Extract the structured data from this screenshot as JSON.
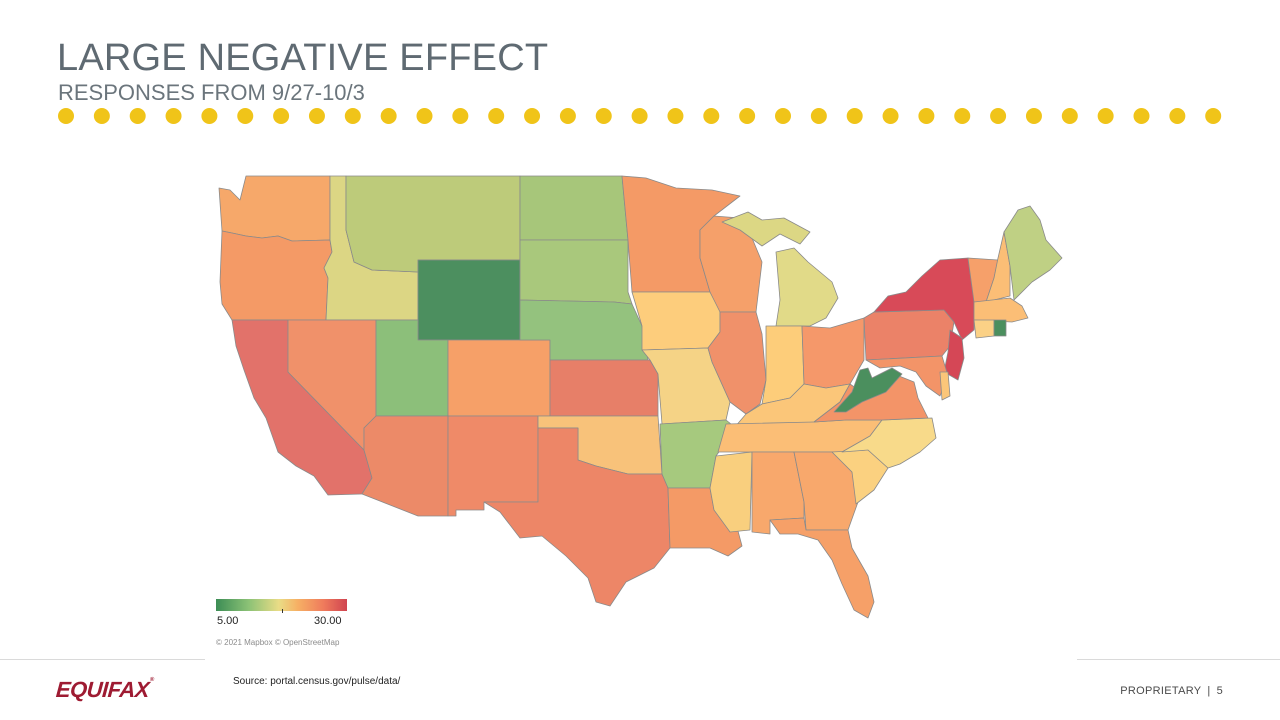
{
  "title": "LARGE NEGATIVE EFFECT",
  "subtitle": "RESPONSES FROM 9/27-10/3",
  "accent_color": "#f0c419",
  "map": {
    "legend": {
      "min_label": "5.00",
      "max_label": "30.00",
      "min_color": "#3c8d55",
      "max_color": "#d04450"
    },
    "credit": "© 2021 Mapbox © OpenStreetMap",
    "states": [
      {
        "id": "WA",
        "fill": "#f6a86a"
      },
      {
        "id": "OR",
        "fill": "#f49a66"
      },
      {
        "id": "CA",
        "fill": "#e2726a"
      },
      {
        "id": "ID",
        "fill": "#dcd684"
      },
      {
        "id": "NV",
        "fill": "#f0916a"
      },
      {
        "id": "MT",
        "fill": "#bdcb7a"
      },
      {
        "id": "WY",
        "fill": "#4c8f5f"
      },
      {
        "id": "UT",
        "fill": "#8cbf7a"
      },
      {
        "id": "AZ",
        "fill": "#ec8a68"
      },
      {
        "id": "CO",
        "fill": "#f6a068"
      },
      {
        "id": "NM",
        "fill": "#ef8a68"
      },
      {
        "id": "ND",
        "fill": "#a7c67a"
      },
      {
        "id": "SD",
        "fill": "#a9c87c"
      },
      {
        "id": "NE",
        "fill": "#94c27e"
      },
      {
        "id": "KS",
        "fill": "#e77f68"
      },
      {
        "id": "OK",
        "fill": "#f8c27a"
      },
      {
        "id": "TX",
        "fill": "#ed8667"
      },
      {
        "id": "MN",
        "fill": "#f49a66"
      },
      {
        "id": "IA",
        "fill": "#fdcd7c"
      },
      {
        "id": "MO",
        "fill": "#f5d386"
      },
      {
        "id": "AR",
        "fill": "#a6c97e"
      },
      {
        "id": "LA",
        "fill": "#f49a66"
      },
      {
        "id": "WI",
        "fill": "#f5a06a"
      },
      {
        "id": "IL",
        "fill": "#f0916a"
      },
      {
        "id": "MI",
        "fill": "#e1da88"
      },
      {
        "id": "UPMI",
        "fill": "#dcd784"
      },
      {
        "id": "IN",
        "fill": "#fdcd7a"
      },
      {
        "id": "OH",
        "fill": "#f5986a"
      },
      {
        "id": "KY",
        "fill": "#fbc679"
      },
      {
        "id": "TN",
        "fill": "#fbbe76"
      },
      {
        "id": "MS",
        "fill": "#f9cf7e"
      },
      {
        "id": "AL",
        "fill": "#f8a86c"
      },
      {
        "id": "GA",
        "fill": "#f8a86c"
      },
      {
        "id": "FL",
        "fill": "#f6a068"
      },
      {
        "id": "SC",
        "fill": "#fbd180"
      },
      {
        "id": "NC",
        "fill": "#f8da8a"
      },
      {
        "id": "VA",
        "fill": "#f39468"
      },
      {
        "id": "WV",
        "fill": "#4b8f5e"
      },
      {
        "id": "PA",
        "fill": "#eb8268"
      },
      {
        "id": "NY",
        "fill": "#d84a58"
      },
      {
        "id": "NJ",
        "fill": "#d54756"
      },
      {
        "id": "MD",
        "fill": "#f39468"
      },
      {
        "id": "DE",
        "fill": "#fbc679"
      },
      {
        "id": "VT",
        "fill": "#f6a06a"
      },
      {
        "id": "NH",
        "fill": "#fbbe76"
      },
      {
        "id": "ME",
        "fill": "#bfd084"
      },
      {
        "id": "MA",
        "fill": "#fbbe76"
      },
      {
        "id": "CT",
        "fill": "#fbd186"
      },
      {
        "id": "RI",
        "fill": "#4b8f5e"
      }
    ]
  },
  "footer": {
    "logo_text": "EQUIFAX",
    "logo_reg": "®",
    "source": "Source:  portal.census.gov/pulse/data/",
    "proprietary": "PROPRIETARY",
    "separator": "|",
    "page_number": "5"
  }
}
